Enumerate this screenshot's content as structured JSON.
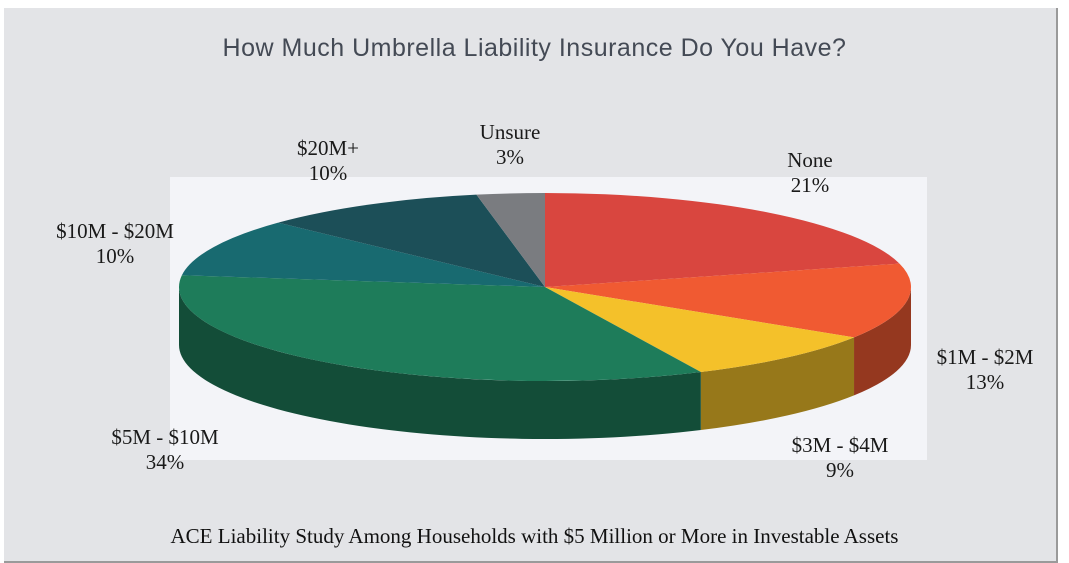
{
  "chart_data": {
    "type": "pie",
    "title": "How Much Umbrella Liability Insurance Do You Have?",
    "caption": "ACE Liability Study Among Households with $5 Million or More in Investable Assets",
    "slices": [
      {
        "label": "None",
        "value": 21,
        "value_label": "21%",
        "color": "#d9463f"
      },
      {
        "label": "$1M - $2M",
        "value": 13,
        "value_label": "13%",
        "color": "#f05a32"
      },
      {
        "label": "$3M - $4M",
        "value": 9,
        "value_label": "9%",
        "color": "#f4c12a"
      },
      {
        "label": "$5M - $10M",
        "value": 34,
        "value_label": "34%",
        "color": "#1e7c5a"
      },
      {
        "label": "$10M - $20M",
        "value": 10,
        "value_label": "10%",
        "color": "#186a70"
      },
      {
        "label": "$20M+",
        "value": 10,
        "value_label": "10%",
        "color": "#1c4f58"
      },
      {
        "label": "Unsure",
        "value": 3,
        "value_label": "3%",
        "color": "#7a7c80"
      }
    ]
  }
}
